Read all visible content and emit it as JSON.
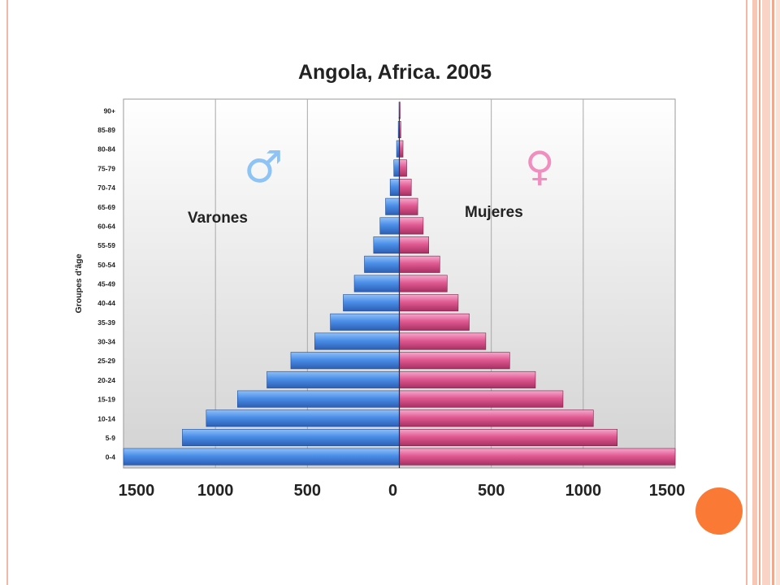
{
  "chart_data": {
    "type": "bar",
    "orientation": "horizontal-population-pyramid",
    "title": "Angola, Africa. 2005",
    "ylabel": "Groupes d'âge",
    "xlabel": "",
    "categories": [
      "0-4",
      "5-9",
      "10-14",
      "15-19",
      "20-24",
      "25-29",
      "30-34",
      "35-39",
      "40-44",
      "45-49",
      "50-54",
      "55-59",
      "60-64",
      "65-69",
      "70-74",
      "75-79",
      "80-84",
      "85-89",
      "90+"
    ],
    "x_ticks": [
      "1500",
      "1000",
      "500",
      "0",
      "500",
      "1000",
      "1500"
    ],
    "xlim": [
      -1500,
      1500
    ],
    "series": [
      {
        "name": "Varones",
        "color": "#4a8ee8",
        "values": [
          1500,
          1180,
          1050,
          880,
          720,
          590,
          460,
          375,
          305,
          245,
          190,
          140,
          105,
          75,
          50,
          30,
          15,
          6,
          2
        ]
      },
      {
        "name": "Mujeres",
        "color": "#e05a92",
        "values": [
          1500,
          1185,
          1055,
          890,
          740,
          600,
          470,
          380,
          320,
          260,
          220,
          160,
          130,
          100,
          65,
          40,
          20,
          8,
          3
        ]
      }
    ],
    "symbols": {
      "male": "♂",
      "female": "♀",
      "male_color": "#8ec3f5",
      "female_color": "#f08ec0"
    },
    "grid": true,
    "legend": "inline-labels"
  }
}
